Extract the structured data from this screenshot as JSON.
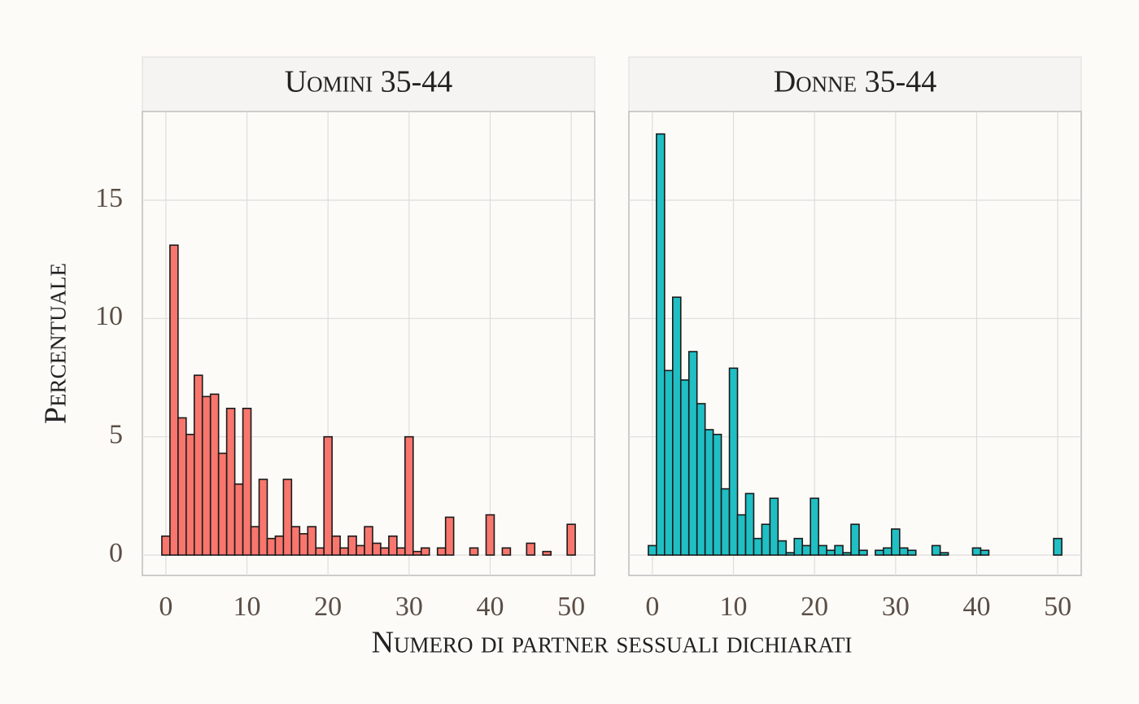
{
  "chart_data": {
    "type": "histogram",
    "x_label": "Numero di partner sessuali dichiarati",
    "y_label": "Percentuale",
    "bins": [
      -0.5,
      0.5,
      1.5,
      2.5,
      3.5,
      4.5,
      5.5,
      6.5,
      7.5,
      8.5,
      9.5,
      10.5,
      11.5,
      12.5,
      13.5,
      14.5,
      15.5,
      16.5,
      17.5,
      18.5,
      19.5,
      20.5,
      21.5,
      22.5,
      23.5,
      24.5,
      25.5,
      26.5,
      27.5,
      28.5,
      29.5,
      30.5,
      31.5,
      32.5,
      33.5,
      34.5,
      35.5,
      36.5,
      37.5,
      38.5,
      39.5,
      40.5,
      41.5,
      42.5,
      43.5,
      44.5,
      45.5,
      46.5,
      47.5,
      48.5,
      49.5,
      50.5
    ],
    "xlim": [
      -2.9,
      52.9
    ],
    "ylim": [
      -0.86,
      18.75
    ],
    "xticks": [
      0,
      10,
      20,
      30,
      40,
      50
    ],
    "yticks": [
      0,
      5,
      10,
      15
    ],
    "grid": true,
    "facets": [
      {
        "title": "Uomini 35-44",
        "color": "#f8766d",
        "values": [
          0.8,
          13.1,
          5.8,
          5.1,
          7.6,
          6.7,
          6.8,
          4.3,
          6.2,
          3.0,
          6.2,
          1.2,
          3.2,
          0.7,
          0.8,
          3.2,
          1.2,
          0.9,
          1.2,
          0.3,
          5.0,
          0.8,
          0.3,
          0.8,
          0.4,
          1.2,
          0.5,
          0.3,
          0.8,
          0.3,
          5.0,
          0.15,
          0.3,
          0,
          0.3,
          1.6,
          0,
          0,
          0.3,
          0,
          1.7,
          0,
          0.3,
          0,
          0,
          0.5,
          0,
          0.15,
          0,
          0,
          1.3
        ]
      },
      {
        "title": "Donne 35-44",
        "color": "#1fbfc4",
        "values": [
          0.4,
          17.8,
          7.8,
          10.9,
          7.4,
          8.6,
          6.4,
          5.3,
          5.1,
          2.8,
          7.9,
          1.7,
          2.6,
          0.7,
          1.3,
          2.4,
          0.6,
          0.1,
          0.7,
          0.4,
          2.4,
          0.4,
          0.2,
          0.4,
          0.1,
          1.3,
          0.2,
          0,
          0.2,
          0.3,
          1.1,
          0.3,
          0.2,
          0,
          0,
          0.4,
          0.1,
          0,
          0,
          0,
          0.3,
          0.2,
          0,
          0,
          0,
          0,
          0,
          0,
          0,
          0,
          0.7
        ]
      }
    ]
  }
}
